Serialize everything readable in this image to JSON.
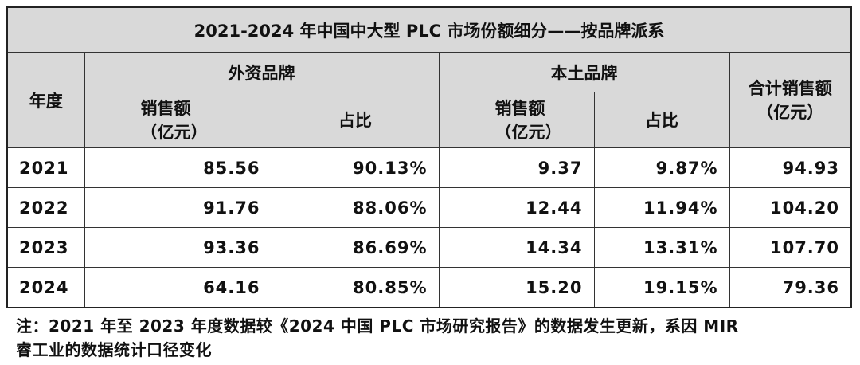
{
  "table": {
    "title": "2021-2024 年中国中大型 PLC 市场份额细分——按品牌派系",
    "header": {
      "year": "年度",
      "groups": [
        "外资品牌",
        "本土品牌"
      ],
      "total": [
        "合计销售额",
        "（亿元）"
      ],
      "sub": [
        [
          "销售额",
          "（亿元）"
        ],
        [
          "占比"
        ],
        [
          "销售额",
          "（亿元）"
        ],
        [
          "占比"
        ]
      ]
    },
    "rows": [
      [
        "2021",
        "85.56",
        "90.13%",
        "9.37",
        "9.87%",
        "94.93"
      ],
      [
        "2022",
        "91.76",
        "88.06%",
        "12.44",
        "11.94%",
        "104.20"
      ],
      [
        "2023",
        "93.36",
        "86.69%",
        "14.34",
        "13.31%",
        "107.70"
      ],
      [
        "2024",
        "64.16",
        "80.85%",
        "15.20",
        "19.15%",
        "79.36"
      ]
    ]
  },
  "note": [
    "注：2021 年至 2023 年度数据较《2024 中国 PLC 市场研究报告》的数据发生更新，系因 MIR",
    "睿工业的数据统计口径变化"
  ]
}
